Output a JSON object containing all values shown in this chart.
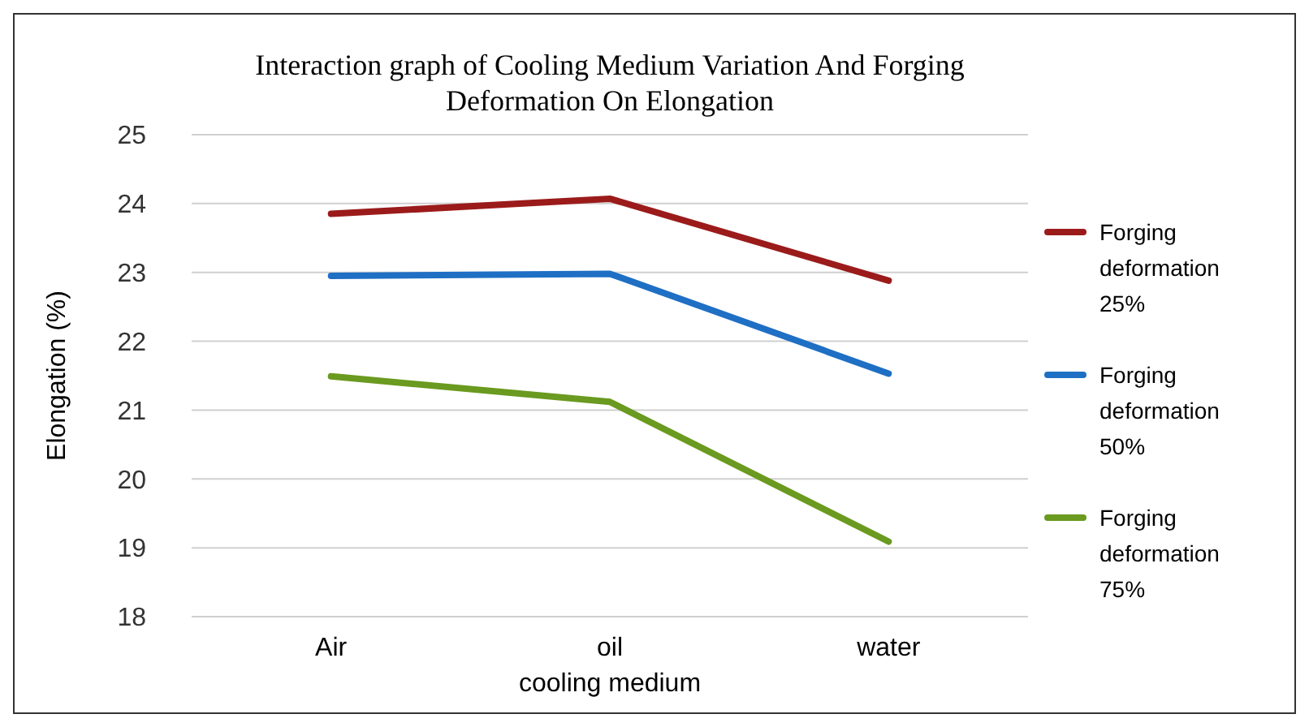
{
  "chart_data": {
    "type": "line",
    "title": "Interaction graph of Cooling Medium Variation And Forging Deformation On Elongation",
    "xlabel": "cooling medium",
    "ylabel": "Elongation (%)",
    "categories": [
      "Air",
      "oil",
      "water"
    ],
    "series": [
      {
        "name": "Forging deformation 25%",
        "color": "#9b1b1b",
        "values": [
          23.85,
          24.07,
          22.88
        ]
      },
      {
        "name": "Forging deformation 50%",
        "color": "#1f6fc4",
        "values": [
          22.95,
          22.98,
          21.53
        ]
      },
      {
        "name": "Forging deformation 75%",
        "color": "#6a9a1f",
        "values": [
          21.49,
          21.12,
          19.09
        ]
      }
    ],
    "ylim": [
      18,
      25
    ],
    "yticks": [
      18,
      19,
      20,
      21,
      22,
      23,
      24,
      25
    ],
    "grid": "y",
    "legend": "right",
    "marker": "none",
    "line_style": "solid"
  }
}
